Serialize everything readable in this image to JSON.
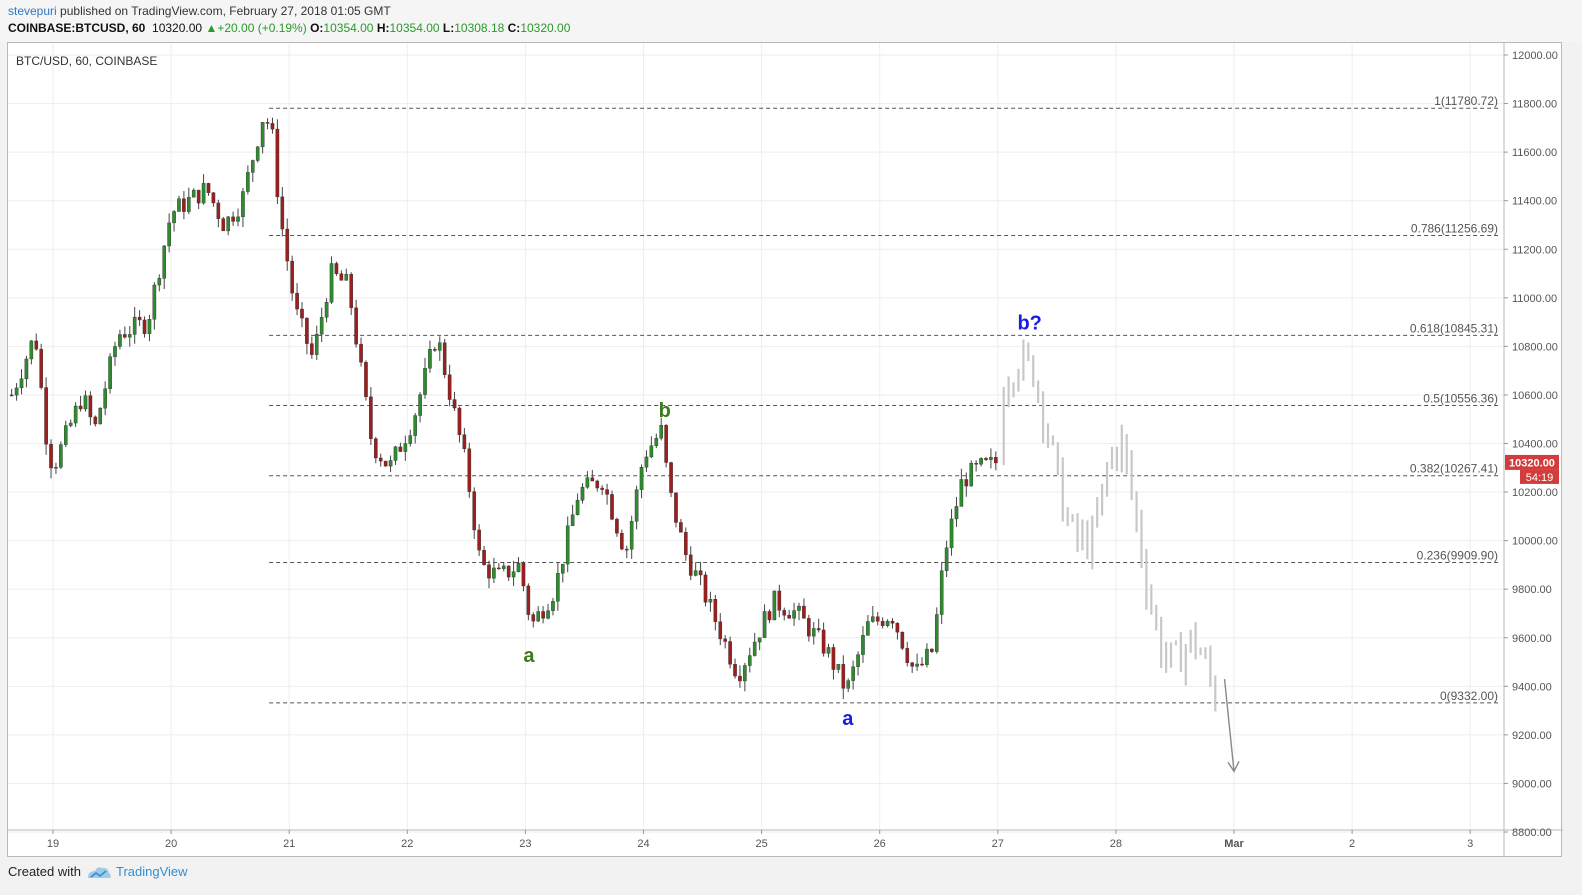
{
  "header": {
    "author": "stevepuri",
    "published_text": "published on TradingView.com, February 27, 2018 01:05 GMT",
    "symbol": "COINBASE:BTCUSD, 60",
    "last": "10320.00",
    "change": "+20.00 (+0.19%)",
    "open_label": "O:",
    "open": "10354.00",
    "high_label": "H:",
    "high": "10354.00",
    "low_label": "L:",
    "low": "10308.18",
    "close_label": "C:",
    "close": "10320.00"
  },
  "footer": {
    "created_with": "Created with",
    "brand": "TradingView"
  },
  "colors": {
    "bull": "#2e8b2e",
    "bear": "#9c1f1f",
    "projection": "#c8c8c8",
    "label_green": "#3a7a1a",
    "label_blue": "#1a1ae6",
    "price_tag": "#d23c3c"
  },
  "chart_data": {
    "type": "candlestick",
    "chart_title": "BTC/USD, 60, COINBASE",
    "ylim": [
      8800,
      12000
    ],
    "y_ticks": [
      8800,
      9000,
      9200,
      9400,
      9600,
      9800,
      10000,
      10200,
      10400,
      10600,
      10800,
      11000,
      11200,
      11400,
      11600,
      11800,
      12000
    ],
    "y_tick_labels": [
      "8800.00",
      "9000.00",
      "9200.00",
      "9400.00",
      "9600.00",
      "9800.00",
      "10000.00",
      "10200.00",
      "10400.00",
      "10600.00",
      "10800.00",
      "11000.00",
      "11200.00",
      "11400.00",
      "11600.00",
      "11800.00",
      "12000.00"
    ],
    "x_ticks": [
      {
        "day": 19,
        "label": "19"
      },
      {
        "day": 20,
        "label": "20"
      },
      {
        "day": 21,
        "label": "21"
      },
      {
        "day": 22,
        "label": "22"
      },
      {
        "day": 23,
        "label": "23"
      },
      {
        "day": 24,
        "label": "24"
      },
      {
        "day": 25,
        "label": "25"
      },
      {
        "day": 26,
        "label": "26"
      },
      {
        "day": 27,
        "label": "27"
      },
      {
        "day": 28,
        "label": "28"
      },
      {
        "day": 29,
        "label": "Mar"
      },
      {
        "day": 30,
        "label": "2"
      },
      {
        "day": 31,
        "label": "3"
      }
    ],
    "x_range_days": [
      18.63,
      31.5
    ],
    "current_price": {
      "value": 10320.0,
      "label": "10320.00",
      "countdown": "54:19"
    },
    "fib_levels": [
      {
        "ratio": "1",
        "value": 11780.72,
        "label": "1(11780.72)"
      },
      {
        "ratio": "0.786",
        "value": 11256.69,
        "label": "0.786(11256.69)"
      },
      {
        "ratio": "0.618",
        "value": 10845.31,
        "label": "0.618(10845.31)"
      },
      {
        "ratio": "0.5",
        "value": 10556.36,
        "label": "0.5(10556.36)"
      },
      {
        "ratio": "0.382",
        "value": 10267.41,
        "label": "0.382(10267.41)"
      },
      {
        "ratio": "0.236",
        "value": 9909.9,
        "label": "0.236(9909.90)"
      },
      {
        "ratio": "0",
        "value": 9332.0,
        "label": "0(9332.00)"
      }
    ],
    "fib_start_day": 20.83,
    "wave_labels": [
      {
        "text": "a",
        "day": 23.03,
        "value": 9500,
        "color": "green"
      },
      {
        "text": "b",
        "day": 24.18,
        "value": 10510,
        "color": "green"
      },
      {
        "text": "a",
        "day": 25.73,
        "value": 9240,
        "color": "blue"
      },
      {
        "text": "b?",
        "day": 27.27,
        "value": 10870,
        "color": "blue"
      }
    ],
    "arrow": {
      "from": [
        28.92,
        9430
      ],
      "to": [
        29.0,
        9050
      ]
    },
    "candle_anchors": [
      [
        18.65,
        10600
      ],
      [
        18.85,
        10850
      ],
      [
        18.95,
        10400
      ],
      [
        19.0,
        10300
      ],
      [
        19.25,
        10600
      ],
      [
        19.35,
        10450
      ],
      [
        19.55,
        10850
      ],
      [
        19.8,
        10900
      ],
      [
        20.0,
        11350
      ],
      [
        20.3,
        11450
      ],
      [
        20.45,
        11300
      ],
      [
        20.6,
        11400
      ],
      [
        20.78,
        11750
      ],
      [
        20.85,
        11700
      ],
      [
        20.92,
        11350
      ],
      [
        21.05,
        10950
      ],
      [
        21.2,
        10750
      ],
      [
        21.35,
        11100
      ],
      [
        21.5,
        11050
      ],
      [
        21.7,
        10400
      ],
      [
        21.85,
        10300
      ],
      [
        22.05,
        10500
      ],
      [
        22.25,
        10850
      ],
      [
        22.5,
        10300
      ],
      [
        22.62,
        9900
      ],
      [
        22.78,
        9850
      ],
      [
        22.95,
        9900
      ],
      [
        23.05,
        9650
      ],
      [
        23.25,
        9800
      ],
      [
        23.45,
        10200
      ],
      [
        23.65,
        10250
      ],
      [
        23.85,
        9950
      ],
      [
        24.0,
        10350
      ],
      [
        24.15,
        10450
      ],
      [
        24.22,
        10200
      ],
      [
        24.35,
        9950
      ],
      [
        24.5,
        9800
      ],
      [
        24.8,
        9450
      ],
      [
        25.1,
        9750
      ],
      [
        25.3,
        9700
      ],
      [
        25.55,
        9550
      ],
      [
        25.72,
        9380
      ],
      [
        25.9,
        9650
      ],
      [
        26.1,
        9700
      ],
      [
        26.3,
        9450
      ],
      [
        26.45,
        9550
      ],
      [
        26.55,
        9950
      ],
      [
        26.7,
        10250
      ],
      [
        26.85,
        10300
      ],
      [
        27.0,
        10320
      ]
    ],
    "projection_anchors": [
      [
        27.05,
        10650
      ],
      [
        27.18,
        10750
      ],
      [
        27.3,
        10700
      ],
      [
        27.4,
        10500
      ],
      [
        27.55,
        10150
      ],
      [
        27.65,
        10000
      ],
      [
        27.8,
        10000
      ],
      [
        27.95,
        10350
      ],
      [
        28.05,
        10400
      ],
      [
        28.15,
        10150
      ],
      [
        28.25,
        9850
      ],
      [
        28.38,
        9550
      ],
      [
        28.5,
        9500
      ],
      [
        28.65,
        9600
      ],
      [
        28.75,
        9500
      ],
      [
        28.88,
        9300
      ]
    ]
  }
}
